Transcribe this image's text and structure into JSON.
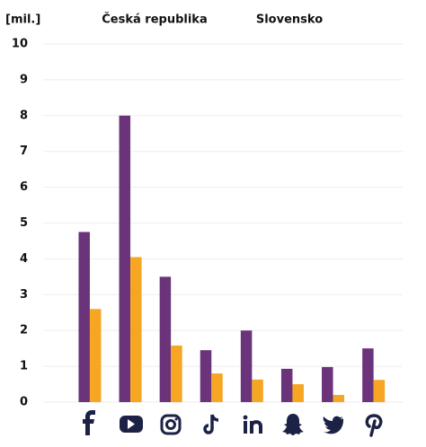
{
  "chart_data": {
    "type": "bar",
    "y_label": "[mil.]",
    "categories": [
      null,
      null,
      null,
      null,
      null,
      null,
      null,
      null
    ],
    "series": [
      {
        "name": "Česká republika",
        "color": "#6a337a",
        "values": [
          4.75,
          8.0,
          3.5,
          1.45,
          2.0,
          0.93,
          0.98,
          1.5
        ]
      },
      {
        "name": "Slovensko",
        "color": "#f6a623",
        "values": [
          2.6,
          4.05,
          1.58,
          0.8,
          0.63,
          0.5,
          0.2,
          0.62
        ]
      }
    ],
    "ylim": [
      0,
      10
    ],
    "yticks": [
      0,
      1,
      2,
      3,
      4,
      5,
      6,
      7,
      8,
      9,
      10
    ],
    "grid": true
  }
}
